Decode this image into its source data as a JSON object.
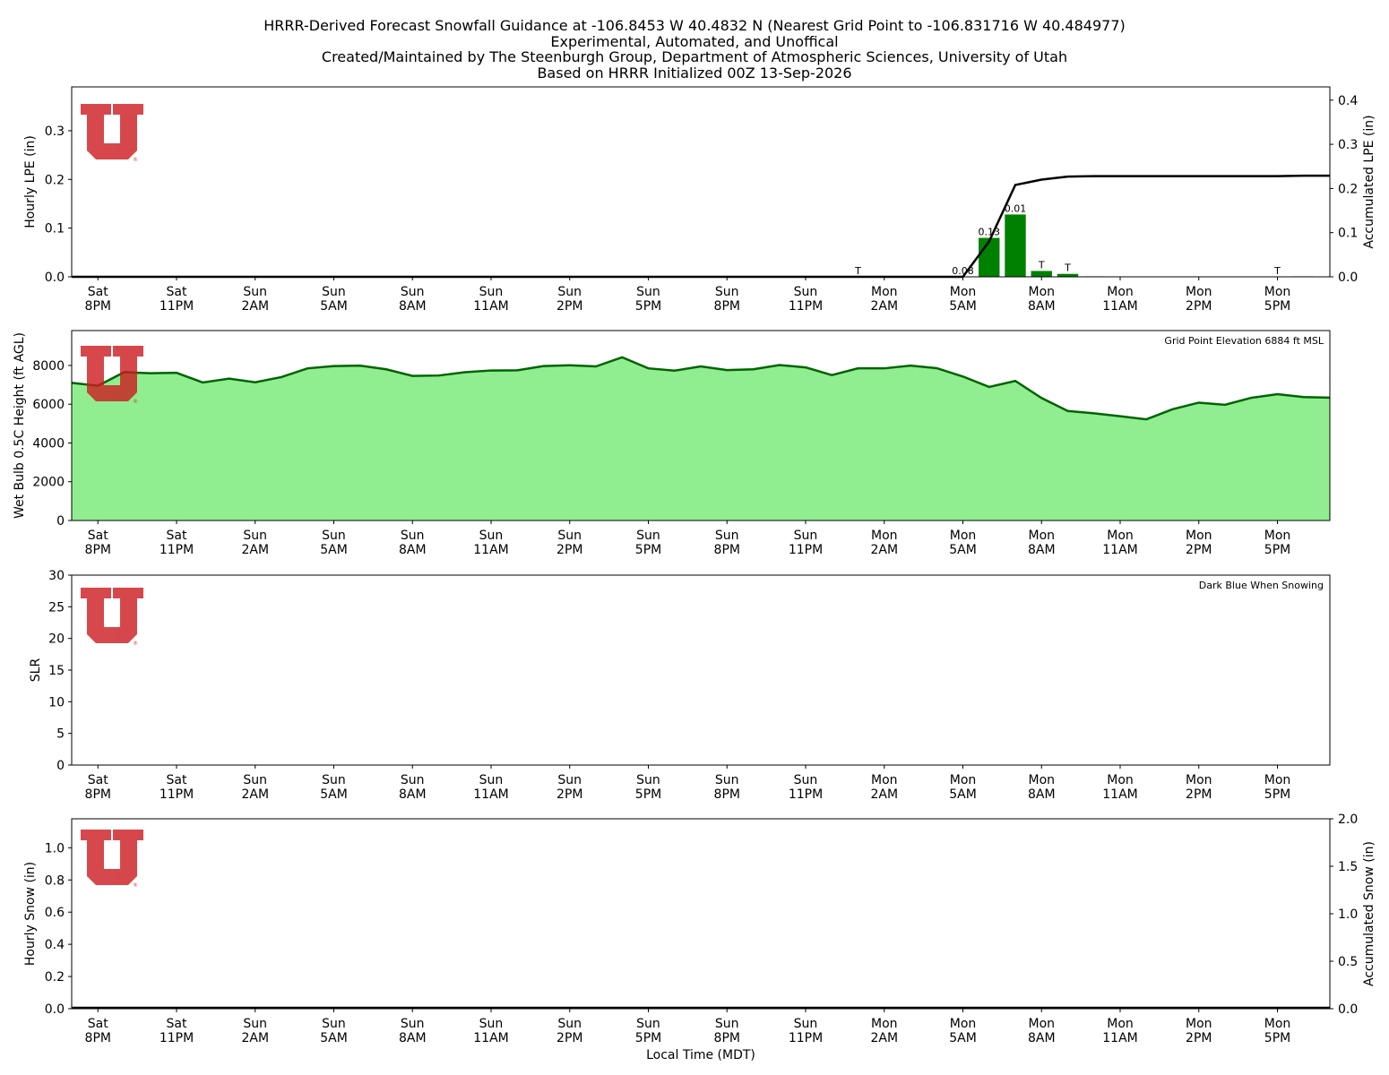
{
  "header": {
    "lines": [
      "HRRR-Derived Forecast Snowfall Guidance at -106.8453 W 40.4832 N (Nearest Grid Point to -106.831716 W 40.484977)",
      "Experimental, Automated, and Unoffical",
      "Created/Maintained by The Steenburgh Group, Department of Atmospheric Sciences, University of Utah",
      "Based on HRRR Initialized 00Z 13-Sep-2026"
    ]
  },
  "colors": {
    "lpe_bar": "#008000",
    "accum_line": "#000000",
    "wetbulb_fill": "#90ee90",
    "wetbulb_line": "#006400",
    "logo": "#cc1a1f"
  },
  "logo": {
    "icon": "university-of-utah-u-logo",
    "registered_mark": "®"
  },
  "chart_data": [
    {
      "type": "bar",
      "panel": "hourly-lpe",
      "ylabel": "Hourly LPE (in)",
      "ylabel_right": "Accumulated LPE (in)",
      "ylim": [
        0,
        0.39
      ],
      "ylim_right": [
        0,
        0.43
      ],
      "yticks": [
        0.0,
        0.1,
        0.2,
        0.3
      ],
      "yticks_right": [
        0.0,
        0.1,
        0.2,
        0.3,
        0.4
      ],
      "xtick_labels": [
        [
          "Sat",
          "8PM"
        ],
        [
          "Sat",
          "11PM"
        ],
        [
          "Sun",
          "2AM"
        ],
        [
          "Sun",
          "5AM"
        ],
        [
          "Sun",
          "8AM"
        ],
        [
          "Sun",
          "11AM"
        ],
        [
          "Sun",
          "2PM"
        ],
        [
          "Sun",
          "5PM"
        ],
        [
          "Sun",
          "8PM"
        ],
        [
          "Sun",
          "11PM"
        ],
        [
          "Mon",
          "2AM"
        ],
        [
          "Mon",
          "5AM"
        ],
        [
          "Mon",
          "8AM"
        ],
        [
          "Mon",
          "11AM"
        ],
        [
          "Mon",
          "2PM"
        ],
        [
          "Mon",
          "5PM"
        ]
      ],
      "hours": [
        -1,
        0,
        1,
        2,
        3,
        4,
        5,
        6,
        7,
        8,
        9,
        10,
        11,
        12,
        13,
        14,
        15,
        16,
        17,
        18,
        19,
        20,
        21,
        22,
        23,
        24,
        25,
        26,
        27,
        28,
        29,
        30,
        31,
        32,
        33,
        34,
        35,
        36,
        37,
        38,
        39,
        40,
        41,
        42,
        43,
        44,
        45,
        46,
        47
      ],
      "hourly_lpe": [
        0,
        0,
        0,
        0,
        0,
        0,
        0,
        0,
        0,
        0,
        0,
        0,
        0,
        0,
        0,
        0,
        0,
        0,
        0,
        0,
        0,
        0,
        0,
        0,
        0,
        0,
        0,
        0,
        0,
        0,
        0,
        0.001,
        0,
        0,
        0,
        0.08,
        0.128,
        0.012,
        0.006,
        0.001,
        0,
        0,
        0,
        0,
        0,
        0,
        0,
        0.001,
        0
      ],
      "accumulated_lpe": [
        0,
        0,
        0,
        0,
        0,
        0,
        0,
        0,
        0,
        0,
        0,
        0,
        0,
        0,
        0,
        0,
        0,
        0,
        0,
        0,
        0,
        0,
        0,
        0,
        0,
        0,
        0,
        0,
        0,
        0,
        0,
        0,
        0,
        0,
        0,
        0.08,
        0.208,
        0.22,
        0.227,
        0.228,
        0.228,
        0.228,
        0.228,
        0.228,
        0.228,
        0.228,
        0.228,
        0.229,
        0.229
      ],
      "bar_labels": [
        {
          "hour": 29,
          "text": "T"
        },
        {
          "hour": 33,
          "text": "0.08"
        },
        {
          "hour": 34,
          "text": "0.13"
        },
        {
          "hour": 35,
          "text": "0.01"
        },
        {
          "hour": 36,
          "text": "T"
        },
        {
          "hour": 37,
          "text": "T"
        },
        {
          "hour": 45,
          "text": "T"
        }
      ]
    },
    {
      "type": "area",
      "panel": "wet-bulb",
      "ylabel": "Wet Bulb 0.5C Height (ft AGL)",
      "ylim": [
        0,
        9800
      ],
      "yticks": [
        0,
        2000,
        4000,
        6000,
        8000
      ],
      "annotation": "Grid Point Elevation 6884 ft MSL",
      "xtick_labels": [
        [
          "Sat",
          "8PM"
        ],
        [
          "Sat",
          "11PM"
        ],
        [
          "Sun",
          "2AM"
        ],
        [
          "Sun",
          "5AM"
        ],
        [
          "Sun",
          "8AM"
        ],
        [
          "Sun",
          "11AM"
        ],
        [
          "Sun",
          "2PM"
        ],
        [
          "Sun",
          "5PM"
        ],
        [
          "Sun",
          "8PM"
        ],
        [
          "Sun",
          "11PM"
        ],
        [
          "Mon",
          "2AM"
        ],
        [
          "Mon",
          "5AM"
        ],
        [
          "Mon",
          "8AM"
        ],
        [
          "Mon",
          "11AM"
        ],
        [
          "Mon",
          "2PM"
        ],
        [
          "Mon",
          "5PM"
        ]
      ],
      "hours": [
        -1,
        0,
        1,
        2,
        3,
        4,
        5,
        6,
        7,
        8,
        9,
        10,
        11,
        12,
        13,
        14,
        15,
        16,
        17,
        18,
        19,
        20,
        21,
        22,
        23,
        24,
        25,
        26,
        27,
        28,
        29,
        30,
        31,
        32,
        33,
        34,
        35,
        36,
        37,
        38,
        39,
        40,
        41,
        42,
        43,
        44,
        45,
        46,
        47
      ],
      "values": [
        7100,
        6950,
        7650,
        7600,
        7620,
        7120,
        7320,
        7130,
        7400,
        7850,
        7970,
        7990,
        7800,
        7460,
        7480,
        7650,
        7740,
        7750,
        7970,
        8010,
        7950,
        8420,
        7850,
        7730,
        7950,
        7760,
        7800,
        8020,
        7900,
        7500,
        7850,
        7850,
        7990,
        7860,
        7430,
        6890,
        7200,
        6320,
        5650,
        5530,
        5380,
        5220,
        5740,
        6080,
        5970,
        6330,
        6520,
        6370,
        6340
      ]
    },
    {
      "type": "bar",
      "panel": "slr",
      "ylabel": "SLR",
      "ylim": [
        0,
        30
      ],
      "yticks": [
        0,
        5,
        10,
        15,
        20,
        25,
        30
      ],
      "annotation": "Dark Blue When Snowing",
      "xtick_labels": [
        [
          "Sat",
          "8PM"
        ],
        [
          "Sat",
          "11PM"
        ],
        [
          "Sun",
          "2AM"
        ],
        [
          "Sun",
          "5AM"
        ],
        [
          "Sun",
          "8AM"
        ],
        [
          "Sun",
          "11AM"
        ],
        [
          "Sun",
          "2PM"
        ],
        [
          "Sun",
          "5PM"
        ],
        [
          "Sun",
          "8PM"
        ],
        [
          "Sun",
          "11PM"
        ],
        [
          "Mon",
          "2AM"
        ],
        [
          "Mon",
          "5AM"
        ],
        [
          "Mon",
          "8AM"
        ],
        [
          "Mon",
          "11AM"
        ],
        [
          "Mon",
          "2PM"
        ],
        [
          "Mon",
          "5PM"
        ]
      ],
      "values": []
    },
    {
      "type": "bar",
      "panel": "hourly-snow",
      "ylabel": "Hourly Snow (in)",
      "ylabel_right": "Accumulated Snow (in)",
      "ylim": [
        0,
        1.18
      ],
      "ylim_right": [
        0,
        2.0
      ],
      "yticks": [
        0.0,
        0.2,
        0.4,
        0.6,
        0.8,
        1.0
      ],
      "yticks_right": [
        0.0,
        0.5,
        1.0,
        1.5,
        2.0
      ],
      "xlabel": "Local Time (MDT)",
      "xtick_labels": [
        [
          "Sat",
          "8PM"
        ],
        [
          "Sat",
          "11PM"
        ],
        [
          "Sun",
          "2AM"
        ],
        [
          "Sun",
          "5AM"
        ],
        [
          "Sun",
          "8AM"
        ],
        [
          "Sun",
          "11AM"
        ],
        [
          "Sun",
          "2PM"
        ],
        [
          "Sun",
          "5PM"
        ],
        [
          "Sun",
          "8PM"
        ],
        [
          "Sun",
          "11PM"
        ],
        [
          "Mon",
          "2AM"
        ],
        [
          "Mon",
          "5AM"
        ],
        [
          "Mon",
          "8AM"
        ],
        [
          "Mon",
          "11AM"
        ],
        [
          "Mon",
          "2PM"
        ],
        [
          "Mon",
          "5PM"
        ]
      ],
      "hourly_snow": [],
      "accumulated_snow": [
        0
      ]
    }
  ]
}
